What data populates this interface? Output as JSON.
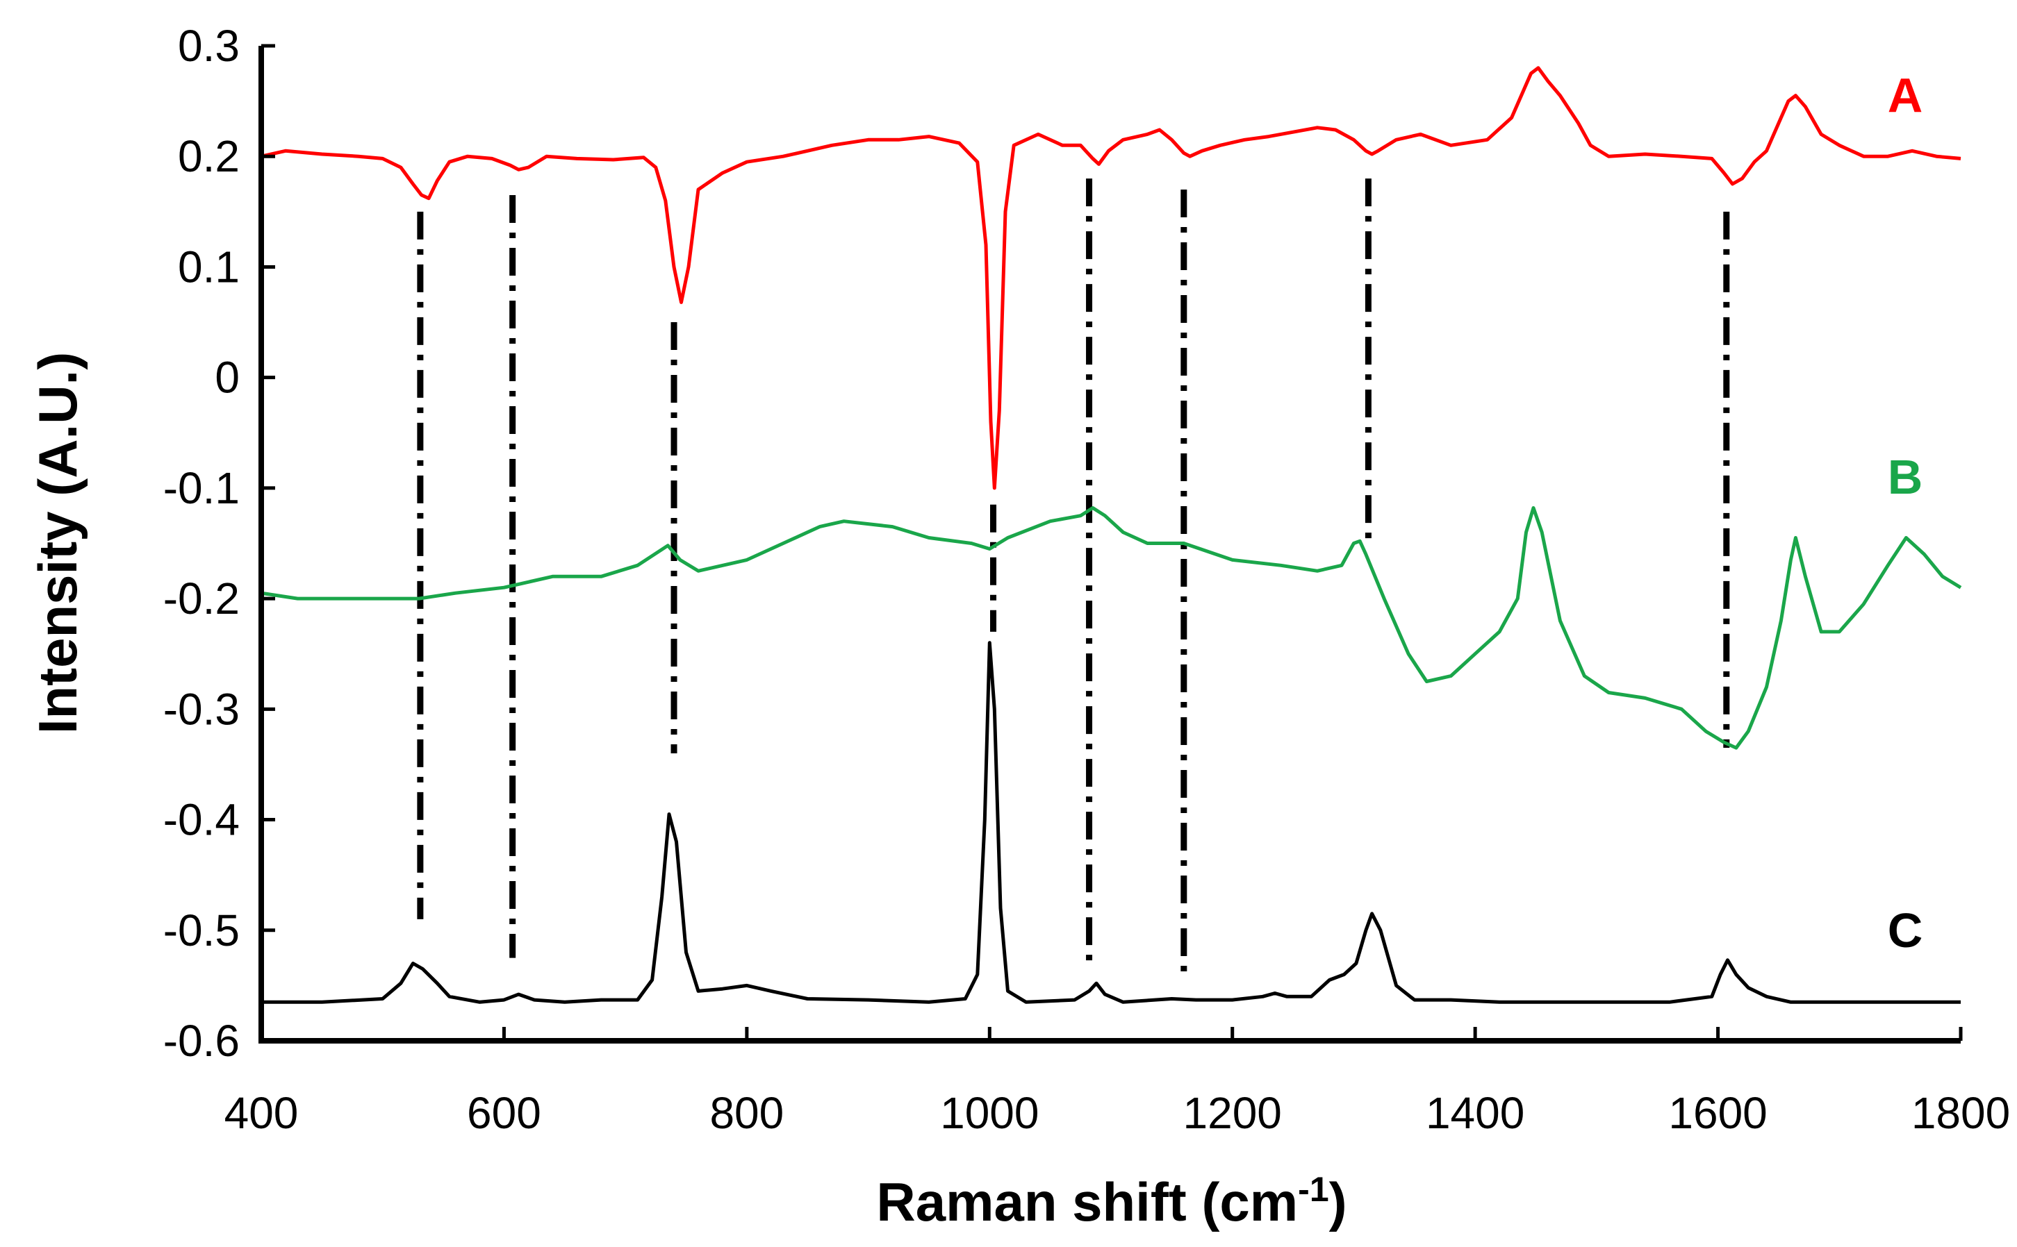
{
  "chart_data": {
    "type": "line",
    "title": "",
    "xlabel": "Raman shift (cm",
    "xlabel_superscript": "-1",
    "xlabel_suffix": ")",
    "ylabel": "Intensity (A.U.)",
    "xlim": [
      400,
      1800
    ],
    "ylim": [
      -0.6,
      0.3
    ],
    "x_ticks": [
      400,
      600,
      800,
      1000,
      1200,
      1400,
      1600,
      1800
    ],
    "x_tick_labels": [
      "400",
      "600",
      "800",
      "1000",
      "1200",
      "1400",
      "1600",
      "1800"
    ],
    "y_ticks": [
      0.3,
      0.2,
      0.1,
      0,
      -0.1,
      -0.2,
      -0.3,
      -0.4,
      -0.5,
      -0.6
    ],
    "y_tick_labels": [
      "0.3",
      "0.2",
      "0.1",
      "0",
      "-0.1",
      "-0.2",
      "-0.3",
      "-0.4",
      "-0.5",
      "-0.6"
    ],
    "grid": false,
    "series": [
      {
        "name": "A",
        "color": "#ff0000",
        "points": [
          [
            400,
            0.2
          ],
          [
            420,
            0.205
          ],
          [
            450,
            0.202
          ],
          [
            480,
            0.2
          ],
          [
            500,
            0.198
          ],
          [
            515,
            0.19
          ],
          [
            525,
            0.175
          ],
          [
            532,
            0.165
          ],
          [
            538,
            0.162
          ],
          [
            545,
            0.178
          ],
          [
            555,
            0.195
          ],
          [
            570,
            0.2
          ],
          [
            590,
            0.198
          ],
          [
            605,
            0.192
          ],
          [
            612,
            0.188
          ],
          [
            620,
            0.19
          ],
          [
            635,
            0.2
          ],
          [
            660,
            0.198
          ],
          [
            690,
            0.197
          ],
          [
            715,
            0.199
          ],
          [
            725,
            0.19
          ],
          [
            733,
            0.16
          ],
          [
            740,
            0.1
          ],
          [
            746,
            0.068
          ],
          [
            752,
            0.1
          ],
          [
            760,
            0.17
          ],
          [
            780,
            0.185
          ],
          [
            800,
            0.195
          ],
          [
            830,
            0.2
          ],
          [
            870,
            0.21
          ],
          [
            900,
            0.215
          ],
          [
            925,
            0.215
          ],
          [
            950,
            0.218
          ],
          [
            975,
            0.212
          ],
          [
            990,
            0.195
          ],
          [
            997,
            0.12
          ],
          [
            1001,
            -0.04
          ],
          [
            1004,
            -0.1
          ],
          [
            1008,
            -0.03
          ],
          [
            1013,
            0.15
          ],
          [
            1020,
            0.21
          ],
          [
            1040,
            0.22
          ],
          [
            1060,
            0.21
          ],
          [
            1075,
            0.21
          ],
          [
            1085,
            0.198
          ],
          [
            1090,
            0.193
          ],
          [
            1098,
            0.205
          ],
          [
            1110,
            0.215
          ],
          [
            1130,
            0.22
          ],
          [
            1140,
            0.224
          ],
          [
            1150,
            0.215
          ],
          [
            1160,
            0.203
          ],
          [
            1165,
            0.2
          ],
          [
            1175,
            0.205
          ],
          [
            1190,
            0.21
          ],
          [
            1210,
            0.215
          ],
          [
            1230,
            0.218
          ],
          [
            1250,
            0.222
          ],
          [
            1270,
            0.226
          ],
          [
            1285,
            0.224
          ],
          [
            1300,
            0.215
          ],
          [
            1310,
            0.205
          ],
          [
            1315,
            0.202
          ],
          [
            1320,
            0.205
          ],
          [
            1335,
            0.215
          ],
          [
            1355,
            0.22
          ],
          [
            1380,
            0.21
          ],
          [
            1410,
            0.215
          ],
          [
            1430,
            0.235
          ],
          [
            1440,
            0.26
          ],
          [
            1446,
            0.275
          ],
          [
            1452,
            0.28
          ],
          [
            1460,
            0.268
          ],
          [
            1470,
            0.255
          ],
          [
            1485,
            0.23
          ],
          [
            1495,
            0.21
          ],
          [
            1510,
            0.2
          ],
          [
            1540,
            0.202
          ],
          [
            1570,
            0.2
          ],
          [
            1595,
            0.198
          ],
          [
            1605,
            0.185
          ],
          [
            1612,
            0.175
          ],
          [
            1620,
            0.18
          ],
          [
            1630,
            0.195
          ],
          [
            1640,
            0.205
          ],
          [
            1650,
            0.23
          ],
          [
            1658,
            0.25
          ],
          [
            1664,
            0.255
          ],
          [
            1672,
            0.245
          ],
          [
            1685,
            0.22
          ],
          [
            1700,
            0.21
          ],
          [
            1720,
            0.2
          ],
          [
            1740,
            0.2
          ],
          [
            1760,
            0.205
          ],
          [
            1780,
            0.2
          ],
          [
            1800,
            0.198
          ]
        ]
      },
      {
        "name": "B",
        "color": "#1aa64a",
        "points": [
          [
            400,
            -0.195
          ],
          [
            430,
            -0.2
          ],
          [
            460,
            -0.2
          ],
          [
            500,
            -0.2
          ],
          [
            530,
            -0.2
          ],
          [
            560,
            -0.195
          ],
          [
            600,
            -0.19
          ],
          [
            640,
            -0.18
          ],
          [
            680,
            -0.18
          ],
          [
            710,
            -0.17
          ],
          [
            735,
            -0.152
          ],
          [
            745,
            -0.165
          ],
          [
            760,
            -0.175
          ],
          [
            800,
            -0.165
          ],
          [
            830,
            -0.15
          ],
          [
            860,
            -0.135
          ],
          [
            880,
            -0.13
          ],
          [
            920,
            -0.135
          ],
          [
            950,
            -0.145
          ],
          [
            985,
            -0.15
          ],
          [
            1000,
            -0.155
          ],
          [
            1015,
            -0.145
          ],
          [
            1050,
            -0.13
          ],
          [
            1075,
            -0.125
          ],
          [
            1085,
            -0.118
          ],
          [
            1095,
            -0.125
          ],
          [
            1110,
            -0.14
          ],
          [
            1130,
            -0.15
          ],
          [
            1160,
            -0.15
          ],
          [
            1200,
            -0.165
          ],
          [
            1240,
            -0.17
          ],
          [
            1270,
            -0.175
          ],
          [
            1290,
            -0.17
          ],
          [
            1300,
            -0.15
          ],
          [
            1305,
            -0.148
          ],
          [
            1310,
            -0.16
          ],
          [
            1325,
            -0.2
          ],
          [
            1345,
            -0.25
          ],
          [
            1360,
            -0.275
          ],
          [
            1380,
            -0.27
          ],
          [
            1400,
            -0.25
          ],
          [
            1420,
            -0.23
          ],
          [
            1435,
            -0.2
          ],
          [
            1442,
            -0.14
          ],
          [
            1448,
            -0.118
          ],
          [
            1455,
            -0.14
          ],
          [
            1470,
            -0.22
          ],
          [
            1490,
            -0.27
          ],
          [
            1510,
            -0.285
          ],
          [
            1540,
            -0.29
          ],
          [
            1570,
            -0.3
          ],
          [
            1590,
            -0.32
          ],
          [
            1605,
            -0.33
          ],
          [
            1615,
            -0.335
          ],
          [
            1625,
            -0.32
          ],
          [
            1640,
            -0.28
          ],
          [
            1652,
            -0.22
          ],
          [
            1660,
            -0.165
          ],
          [
            1664,
            -0.145
          ],
          [
            1672,
            -0.18
          ],
          [
            1685,
            -0.23
          ],
          [
            1700,
            -0.23
          ],
          [
            1720,
            -0.205
          ],
          [
            1740,
            -0.17
          ],
          [
            1755,
            -0.145
          ],
          [
            1770,
            -0.16
          ],
          [
            1785,
            -0.18
          ],
          [
            1800,
            -0.19
          ]
        ]
      },
      {
        "name": "C",
        "color": "#000000",
        "points": [
          [
            400,
            -0.565
          ],
          [
            450,
            -0.565
          ],
          [
            500,
            -0.562
          ],
          [
            515,
            -0.548
          ],
          [
            525,
            -0.53
          ],
          [
            533,
            -0.535
          ],
          [
            545,
            -0.548
          ],
          [
            555,
            -0.56
          ],
          [
            580,
            -0.565
          ],
          [
            600,
            -0.563
          ],
          [
            612,
            -0.558
          ],
          [
            625,
            -0.563
          ],
          [
            650,
            -0.565
          ],
          [
            680,
            -0.563
          ],
          [
            710,
            -0.563
          ],
          [
            722,
            -0.545
          ],
          [
            730,
            -0.47
          ],
          [
            736,
            -0.395
          ],
          [
            742,
            -0.42
          ],
          [
            750,
            -0.52
          ],
          [
            760,
            -0.555
          ],
          [
            780,
            -0.553
          ],
          [
            800,
            -0.55
          ],
          [
            820,
            -0.555
          ],
          [
            850,
            -0.562
          ],
          [
            900,
            -0.563
          ],
          [
            950,
            -0.565
          ],
          [
            980,
            -0.562
          ],
          [
            990,
            -0.54
          ],
          [
            996,
            -0.4
          ],
          [
            1000,
            -0.24
          ],
          [
            1004,
            -0.3
          ],
          [
            1009,
            -0.48
          ],
          [
            1015,
            -0.555
          ],
          [
            1030,
            -0.565
          ],
          [
            1070,
            -0.563
          ],
          [
            1082,
            -0.555
          ],
          [
            1088,
            -0.548
          ],
          [
            1095,
            -0.558
          ],
          [
            1110,
            -0.565
          ],
          [
            1150,
            -0.562
          ],
          [
            1170,
            -0.563
          ],
          [
            1200,
            -0.563
          ],
          [
            1225,
            -0.56
          ],
          [
            1235,
            -0.557
          ],
          [
            1245,
            -0.56
          ],
          [
            1265,
            -0.56
          ],
          [
            1280,
            -0.545
          ],
          [
            1292,
            -0.54
          ],
          [
            1302,
            -0.53
          ],
          [
            1310,
            -0.5
          ],
          [
            1315,
            -0.485
          ],
          [
            1322,
            -0.5
          ],
          [
            1335,
            -0.55
          ],
          [
            1350,
            -0.563
          ],
          [
            1380,
            -0.563
          ],
          [
            1420,
            -0.565
          ],
          [
            1500,
            -0.565
          ],
          [
            1560,
            -0.565
          ],
          [
            1595,
            -0.56
          ],
          [
            1602,
            -0.54
          ],
          [
            1608,
            -0.527
          ],
          [
            1615,
            -0.54
          ],
          [
            1625,
            -0.552
          ],
          [
            1640,
            -0.56
          ],
          [
            1660,
            -0.565
          ],
          [
            1700,
            -0.565
          ],
          [
            1750,
            -0.565
          ],
          [
            1800,
            -0.565
          ]
        ]
      }
    ],
    "reference_lines": [
      {
        "x": 531,
        "y_top": 0.15,
        "y_bottom": -0.49
      },
      {
        "x": 607,
        "y_top": 0.165,
        "y_bottom": -0.525
      },
      {
        "x": 740,
        "y_top": 0.05,
        "y_bottom": -0.34
      },
      {
        "x": 1003,
        "y_top": -0.115,
        "y_bottom": -0.23
      },
      {
        "x": 1082,
        "y_top": 0.18,
        "y_bottom": -0.535
      },
      {
        "x": 1160,
        "y_top": 0.17,
        "y_bottom": -0.545
      },
      {
        "x": 1312,
        "y_top": 0.18,
        "y_bottom": -0.15
      },
      {
        "x": 1607,
        "y_top": 0.15,
        "y_bottom": -0.335
      }
    ],
    "series_labels": [
      {
        "text": "A",
        "color": "#ff0000",
        "y": 0.255
      },
      {
        "text": "B",
        "color": "#1aa64a",
        "y": -0.09
      },
      {
        "text": "C",
        "color": "#000000",
        "y": -0.5
      }
    ]
  }
}
